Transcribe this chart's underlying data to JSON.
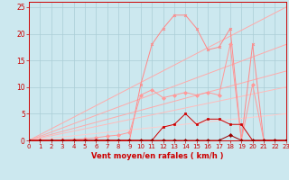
{
  "xlabel": "Vent moyen/en rafales ( km/h )",
  "xlim": [
    0,
    23
  ],
  "ylim": [
    0,
    26
  ],
  "xticks": [
    0,
    1,
    2,
    3,
    4,
    5,
    6,
    7,
    8,
    9,
    10,
    11,
    12,
    13,
    14,
    15,
    16,
    17,
    18,
    19,
    20,
    21,
    22,
    23
  ],
  "yticks": [
    0,
    5,
    10,
    15,
    20,
    25
  ],
  "bg_color": "#cce8ef",
  "grid_color": "#aacdd6",
  "diag_lines": [
    {
      "x": [
        0,
        23
      ],
      "y": [
        0,
        25
      ],
      "color": "#ffaaaa",
      "lw": 0.7
    },
    {
      "x": [
        0,
        23
      ],
      "y": [
        0,
        18
      ],
      "color": "#ffaaaa",
      "lw": 0.7
    },
    {
      "x": [
        0,
        23
      ],
      "y": [
        0,
        13
      ],
      "color": "#ffaaaa",
      "lw": 0.7
    },
    {
      "x": [
        0,
        23
      ],
      "y": [
        0,
        10
      ],
      "color": "#ffbbbb",
      "lw": 0.7
    },
    {
      "x": [
        0,
        23
      ],
      "y": [
        0,
        5
      ],
      "color": "#ffcccc",
      "lw": 0.7
    }
  ],
  "line_top_x": [
    0,
    1,
    2,
    3,
    4,
    5,
    6,
    7,
    8,
    9,
    10,
    11,
    12,
    13,
    14,
    15,
    16,
    17,
    18,
    19,
    20,
    21,
    22,
    23
  ],
  "line_top_y": [
    0,
    0,
    0,
    0,
    0,
    0,
    0,
    0,
    0,
    0,
    10.5,
    18,
    21,
    23.5,
    23.5,
    21,
    17,
    17.5,
    21,
    0,
    18,
    0,
    0,
    0
  ],
  "line_top_color": "#ff8888",
  "line_mid_x": [
    0,
    1,
    2,
    3,
    4,
    5,
    6,
    7,
    8,
    9,
    10,
    11,
    12,
    13,
    14,
    15,
    16,
    17,
    18,
    19,
    20,
    21,
    22,
    23
  ],
  "line_mid_y": [
    0,
    0,
    0,
    0.1,
    0.2,
    0.3,
    0.5,
    0.8,
    1.0,
    1.5,
    8.5,
    9.5,
    8.0,
    8.5,
    9.0,
    8.5,
    9.0,
    8.5,
    18,
    0,
    10.5,
    0,
    0,
    0
  ],
  "line_mid_color": "#ff9999",
  "line_low2_x": [
    0,
    1,
    2,
    3,
    4,
    5,
    6,
    7,
    8,
    9,
    10,
    11,
    12,
    13,
    14,
    15,
    16,
    17,
    18,
    19,
    20,
    21,
    22,
    23
  ],
  "line_low2_y": [
    0,
    0,
    0,
    0,
    0,
    0,
    0,
    0,
    0,
    0,
    0,
    0,
    2.5,
    3.0,
    5.0,
    3.0,
    4.0,
    4.0,
    3.0,
    3.0,
    0,
    0,
    0,
    0
  ],
  "line_low2_color": "#cc0000",
  "line_low1_x": [
    0,
    1,
    2,
    3,
    4,
    5,
    6,
    7,
    8,
    9,
    10,
    11,
    12,
    13,
    14,
    15,
    16,
    17,
    18,
    19,
    20,
    21,
    22,
    23
  ],
  "line_low1_y": [
    0,
    0,
    0,
    0,
    0,
    0,
    0,
    0,
    0,
    0,
    0,
    0,
    0,
    0,
    0,
    0,
    0,
    0,
    1,
    0,
    0,
    0,
    0,
    0
  ],
  "line_low1_color": "#990000"
}
